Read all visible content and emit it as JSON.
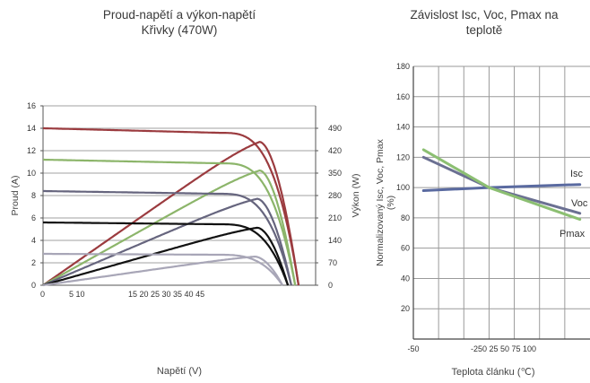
{
  "chart_data": [
    {
      "type": "line",
      "title": "Proud-napětí a výkon-napětí Křivky (470W)",
      "xlabel": "Napětí (V)",
      "ylabel": "Proud (A)",
      "y2label": "Výkon (W)",
      "x_ticks": [
        "0",
        "5 10",
        "15 20 25 30 35 40 45"
      ],
      "ylim": [
        0,
        16
      ],
      "y_ticks": [
        0,
        2,
        4,
        6,
        8,
        10,
        12,
        14,
        16
      ],
      "y2lim": [
        0,
        560
      ],
      "y2_ticks": [
        0,
        70,
        140,
        210,
        280,
        350,
        420,
        490
      ],
      "grid": true,
      "series": [
        {
          "kind": "iv",
          "color": "#9b3b3f",
          "isc": 14,
          "voc": 52.5,
          "vmp": 44.5
        },
        {
          "kind": "pv",
          "color": "#9b3b3f",
          "pmax": 471,
          "voc": 52.5,
          "vmp": 44.5
        },
        {
          "kind": "iv",
          "color": "#8cb56a",
          "isc": 11.2,
          "voc": 51.8,
          "vmp": 44.5
        },
        {
          "kind": "pv",
          "color": "#8cb56a",
          "pmax": 377,
          "voc": 51.8,
          "vmp": 44.5
        },
        {
          "kind": "iv",
          "color": "#66657e",
          "isc": 8.4,
          "voc": 51.0,
          "vmp": 44.0
        },
        {
          "kind": "pv",
          "color": "#66657e",
          "pmax": 284,
          "voc": 51.0,
          "vmp": 44.0
        },
        {
          "kind": "iv",
          "color": "#111111",
          "isc": 5.6,
          "voc": 50.3,
          "vmp": 44.0
        },
        {
          "kind": "pv",
          "color": "#111111",
          "pmax": 189,
          "voc": 50.3,
          "vmp": 44.0
        },
        {
          "kind": "iv",
          "color": "#a8a6b7",
          "isc": 2.8,
          "voc": 49.2,
          "vmp": 43.5
        },
        {
          "kind": "pv",
          "color": "#a8a6b7",
          "pmax": 94,
          "voc": 49.2,
          "vmp": 43.5
        }
      ]
    },
    {
      "type": "line",
      "title": "Závislost Isc, Voc, Pmax na teplotě",
      "xlabel": "Teplota článku (℃)",
      "ylabel": "Normalizovaný Isc, Voc, Pmax (%)",
      "x_ticks": [
        "-50",
        "-250 25 50 75 100"
      ],
      "xlim": [
        -50,
        125
      ],
      "ylim": [
        0,
        180
      ],
      "y_ticks": [
        20,
        40,
        60,
        80,
        100,
        120,
        140,
        160,
        180
      ],
      "grid": true,
      "series": [
        {
          "name": "Isc",
          "color": "#5a6aa0",
          "x": [
            -40,
            25,
            115
          ],
          "y": [
            98,
            100,
            102
          ]
        },
        {
          "name": "Voc",
          "color": "#6b7092",
          "x": [
            -40,
            25,
            115
          ],
          "y": [
            120,
            100,
            83
          ]
        },
        {
          "name": "Pmax",
          "color": "#8cbf72",
          "x": [
            -40,
            25,
            115
          ],
          "y": [
            125,
            100,
            79
          ]
        }
      ]
    }
  ]
}
